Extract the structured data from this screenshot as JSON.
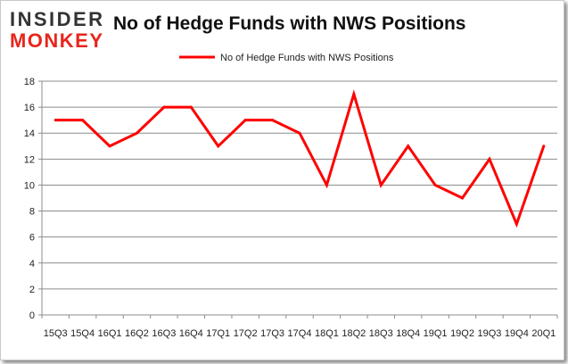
{
  "logo": {
    "line1": "INSIDER",
    "line2": "MONKEY",
    "colors": {
      "line1": "#333333",
      "line2": "#e8251c"
    }
  },
  "chart_data": {
    "type": "line",
    "title": "No of Hedge Funds with NWS Positions",
    "categories": [
      "15Q3",
      "15Q4",
      "16Q1",
      "16Q2",
      "16Q3",
      "16Q4",
      "17Q1",
      "17Q2",
      "17Q3",
      "17Q4",
      "18Q1",
      "18Q2",
      "18Q3",
      "18Q4",
      "19Q1",
      "19Q2",
      "19Q3",
      "19Q4",
      "20Q1"
    ],
    "series": [
      {
        "name": "No of Hedge Funds with NWS Positions",
        "values": [
          15,
          15,
          13,
          14,
          16,
          16,
          13,
          15,
          15,
          14,
          10,
          17,
          10,
          13,
          10,
          9,
          12,
          7,
          13
        ],
        "color": "#ff0000"
      }
    ],
    "ylim": [
      0,
      18
    ],
    "yticks": [
      0,
      2,
      4,
      6,
      8,
      10,
      12,
      14,
      16,
      18
    ],
    "grid": true,
    "legend": "top-center"
  }
}
